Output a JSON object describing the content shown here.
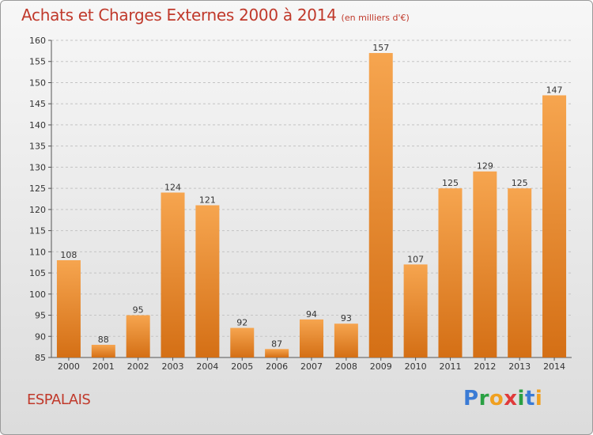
{
  "title": "Achats et Charges Externes 2000 à 2014",
  "unit": "(en milliers d'€)",
  "commune": "ESPALAIS",
  "logo": [
    "P",
    "r",
    "o",
    "x",
    "i",
    "t",
    "i"
  ],
  "colors": {
    "bar_top": "#f6a54f",
    "bar_bottom": "#d46f15",
    "title": "#c0392b",
    "logo": [
      "#3a7bd5",
      "#2aa043",
      "#f0a020",
      "#e03a3a",
      "#2aa043",
      "#3a7bd5",
      "#f0a020"
    ]
  },
  "chart_data": {
    "type": "bar",
    "categories": [
      "2000",
      "2001",
      "2002",
      "2003",
      "2004",
      "2005",
      "2006",
      "2007",
      "2008",
      "2009",
      "2010",
      "2011",
      "2012",
      "2013",
      "2014"
    ],
    "values": [
      108,
      88,
      95,
      124,
      121,
      92,
      87,
      94,
      93,
      157,
      107,
      125,
      129,
      125,
      147
    ],
    "data_labels": [
      "108",
      "88",
      "95",
      "124",
      "121",
      "92",
      "87",
      "94",
      "93",
      "157",
      "107",
      "125",
      "129",
      "125",
      "147"
    ],
    "ylim": [
      85,
      160
    ],
    "yticks": [
      85,
      90,
      95,
      100,
      105,
      110,
      115,
      120,
      125,
      130,
      135,
      140,
      145,
      150,
      155,
      160
    ],
    "grid": true,
    "legend": "none"
  }
}
